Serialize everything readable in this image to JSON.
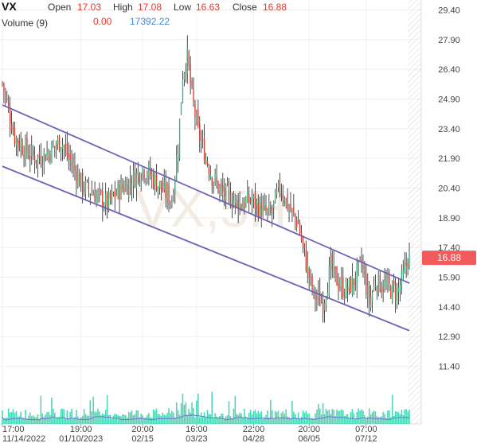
{
  "header": {
    "symbol": "VX",
    "open_label": "Open",
    "open_value": "17.03",
    "high_label": "High",
    "high_value": "17.08",
    "low_label": "Low",
    "low_value": "16.63",
    "close_label": "Close",
    "close_value": "16.88",
    "volume_label": "Volume (9)",
    "volume_value_a": "0.00",
    "volume_value_b": "17392.22"
  },
  "watermark": "VX,5H",
  "last_price_label": "16.88",
  "colors": {
    "up": "#2fb577",
    "down": "#e0392b",
    "trendline": "#6a63b8",
    "volume_bar": "#2ccfa8",
    "volume_ma": "#7a6fd0",
    "price_tag": "#f25b5b"
  },
  "chart_data": {
    "type": "candlestick",
    "y_axis": {
      "side": "right",
      "min": 10.7,
      "max": 29.9,
      "ticks": [
        "29.40",
        "27.90",
        "26.40",
        "24.90",
        "23.40",
        "21.90",
        "20.40",
        "18.90",
        "17.40",
        "15.90",
        "14.40",
        "12.90",
        "11.40"
      ]
    },
    "x_axis": {
      "time_labels": [
        "17:00",
        "19:00",
        "20:00",
        "16:00",
        "22:00",
        "20:00",
        "07:00"
      ],
      "date_labels": [
        "11/14/2022",
        "01/10/2023",
        "02/15",
        "03/23",
        "04/28",
        "06/05",
        "07/12"
      ],
      "label_bar_index": [
        0,
        51,
        91,
        126,
        163,
        199,
        236
      ]
    },
    "last_close": 16.88,
    "close_anchors": [
      [
        0,
        25.7
      ],
      [
        8,
        23.0
      ],
      [
        15,
        22.3
      ],
      [
        22,
        21.9
      ],
      [
        30,
        22.2
      ],
      [
        38,
        22.8
      ],
      [
        45,
        21.6
      ],
      [
        52,
        20.5
      ],
      [
        60,
        20.1
      ],
      [
        68,
        19.6
      ],
      [
        76,
        20.3
      ],
      [
        84,
        20.8
      ],
      [
        91,
        21.4
      ],
      [
        98,
        20.9
      ],
      [
        105,
        20.2
      ],
      [
        110,
        19.8
      ],
      [
        114,
        22.5
      ],
      [
        117,
        26.2
      ],
      [
        120,
        27.0
      ],
      [
        123,
        25.0
      ],
      [
        127,
        23.2
      ],
      [
        131,
        22.2
      ],
      [
        136,
        21.0
      ],
      [
        142,
        20.2
      ],
      [
        148,
        19.9
      ],
      [
        155,
        19.6
      ],
      [
        162,
        19.8
      ],
      [
        168,
        19.3
      ],
      [
        174,
        19.0
      ],
      [
        180,
        20.5
      ],
      [
        186,
        19.4
      ],
      [
        192,
        18.6
      ],
      [
        197,
        16.6
      ],
      [
        202,
        15.0
      ],
      [
        208,
        14.6
      ],
      [
        213,
        16.4
      ],
      [
        218,
        15.6
      ],
      [
        223,
        15.2
      ],
      [
        228,
        15.7
      ],
      [
        233,
        16.6
      ],
      [
        238,
        14.6
      ],
      [
        242,
        15.7
      ],
      [
        247,
        15.5
      ],
      [
        252,
        15.3
      ],
      [
        256,
        15.1
      ],
      [
        260,
        15.9
      ],
      [
        263,
        16.88
      ]
    ],
    "trendlines": [
      {
        "name": "upper",
        "start": {
          "bar": 0,
          "value": 24.6
        },
        "end": {
          "bar": 264,
          "value": 15.6
        }
      },
      {
        "name": "lower",
        "start": {
          "bar": 0,
          "value": 21.5
        },
        "end": {
          "bar": 264,
          "value": 13.2
        }
      }
    ],
    "volume_series_max": 1.0,
    "volume_seed": 7
  }
}
